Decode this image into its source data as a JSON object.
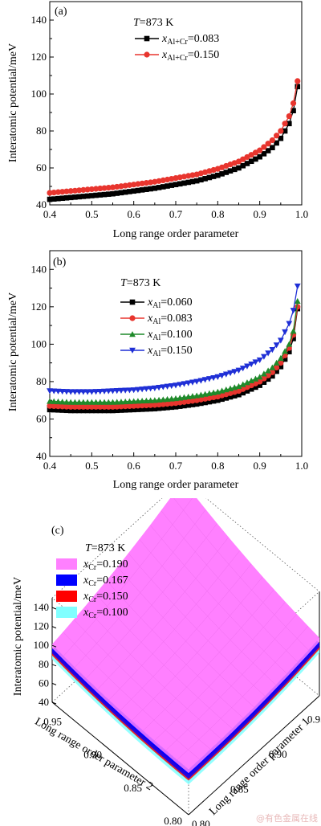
{
  "chart_data": [
    {
      "type": "line",
      "panel_label": "(a)",
      "annotation": "T=873 K",
      "xlabel": "Long range order parameter",
      "ylabel": "Interatomic potential/meV",
      "xlim": [
        0.4,
        1.0
      ],
      "ylim": [
        40,
        150
      ],
      "xticks": [
        "0.4",
        "0.5",
        "0.6",
        "0.7",
        "0.8",
        "0.9",
        "1.0"
      ],
      "yticks": [
        "40",
        "60",
        "80",
        "100",
        "120",
        "140"
      ],
      "series": [
        {
          "name": "x_Al+Cr=0.083",
          "marker": "square",
          "color": "#000000",
          "x": [
            0.4,
            0.45,
            0.5,
            0.55,
            0.6,
            0.65,
            0.7,
            0.75,
            0.8,
            0.85,
            0.9,
            0.93,
            0.95,
            0.97,
            0.98,
            0.99
          ],
          "y": [
            43,
            44,
            45,
            46,
            47.5,
            49,
            51,
            53,
            56,
            60,
            66,
            71,
            76,
            84,
            91,
            104
          ]
        },
        {
          "name": "x_Al+Cr=0.150",
          "marker": "circle",
          "color": "#e8352e",
          "x": [
            0.4,
            0.45,
            0.5,
            0.55,
            0.6,
            0.65,
            0.7,
            0.75,
            0.8,
            0.85,
            0.9,
            0.93,
            0.95,
            0.97,
            0.98,
            0.99
          ],
          "y": [
            46.5,
            47.5,
            48.5,
            49.5,
            51,
            52.5,
            54.5,
            56.5,
            59.5,
            63.5,
            69.5,
            75,
            80,
            88,
            95,
            107
          ]
        }
      ]
    },
    {
      "type": "line",
      "panel_label": "(b)",
      "annotation": "T=873 K",
      "xlabel": "Long range order parameter",
      "ylabel": "Interatomic potential/meV",
      "xlim": [
        0.4,
        1.0
      ],
      "ylim": [
        40,
        150
      ],
      "xticks": [
        "0.4",
        "0.5",
        "0.6",
        "0.7",
        "0.8",
        "0.9",
        "1.0"
      ],
      "yticks": [
        "40",
        "60",
        "80",
        "100",
        "120",
        "140"
      ],
      "series": [
        {
          "name": "x_Al=0.060",
          "marker": "square",
          "color": "#000000",
          "x": [
            0.4,
            0.45,
            0.5,
            0.55,
            0.6,
            0.65,
            0.7,
            0.75,
            0.8,
            0.85,
            0.9,
            0.93,
            0.95,
            0.97,
            0.98,
            0.99
          ],
          "y": [
            65,
            64.5,
            64.5,
            64.5,
            65,
            65.5,
            66.5,
            68,
            70,
            73,
            78,
            83,
            88,
            96,
            103,
            119
          ]
        },
        {
          "name": "x_Al=0.083",
          "marker": "circle",
          "color": "#e8352e",
          "x": [
            0.4,
            0.45,
            0.5,
            0.55,
            0.6,
            0.65,
            0.7,
            0.75,
            0.8,
            0.85,
            0.9,
            0.93,
            0.95,
            0.97,
            0.98,
            0.99
          ],
          "y": [
            67,
            66.5,
            66.5,
            66.5,
            67,
            67.5,
            68.5,
            70,
            72,
            75,
            80,
            85,
            90,
            98,
            105,
            120
          ]
        },
        {
          "name": "x_Al=0.100",
          "marker": "triangle-up",
          "color": "#1f8a2a",
          "x": [
            0.4,
            0.45,
            0.5,
            0.55,
            0.6,
            0.65,
            0.7,
            0.75,
            0.8,
            0.85,
            0.9,
            0.93,
            0.95,
            0.97,
            0.98,
            0.99
          ],
          "y": [
            69.5,
            69,
            69,
            69,
            69.5,
            70,
            71,
            72.5,
            74.5,
            77.5,
            82.5,
            87.5,
            92.5,
            100,
            107,
            123
          ]
        },
        {
          "name": "x_Al=0.150",
          "marker": "triangle-down",
          "color": "#1f2fd6",
          "x": [
            0.4,
            0.45,
            0.5,
            0.55,
            0.6,
            0.65,
            0.7,
            0.75,
            0.8,
            0.85,
            0.9,
            0.93,
            0.95,
            0.97,
            0.98,
            0.99
          ],
          "y": [
            75,
            74.5,
            74.5,
            75,
            75.5,
            76.5,
            78,
            80,
            82.5,
            86,
            91.5,
            97,
            102,
            111,
            118,
            131
          ]
        }
      ]
    },
    {
      "type": "surface",
      "panel_label": "(c)",
      "annotation": "T=873 K",
      "xlabel": "Long range order parameter 1",
      "ylabel": "Long range order parameter 2",
      "zlabel": "Interatomic potential/meV",
      "xlim": [
        0.8,
        0.97
      ],
      "ylim": [
        0.8,
        0.97
      ],
      "zlim": [
        40,
        150
      ],
      "xticks": [
        "0.80",
        "0.85",
        "0.90",
        "0.95"
      ],
      "yticks": [
        "0.80",
        "0.85",
        "0.90",
        "0.95"
      ],
      "zticks": [
        "40",
        "60",
        "80",
        "100",
        "120",
        "140"
      ],
      "series": [
        {
          "name": "x_Cr=0.190",
          "color": "#ff80ff",
          "corner_values": [
            148,
            88,
            148,
            92
          ]
        },
        {
          "name": "x_Cr=0.167",
          "color": "#0000ff",
          "corner_values": [
            144,
            82,
            144,
            84
          ]
        },
        {
          "name": "x_Cr=0.150",
          "color": "#ff0000",
          "corner_values": [
            141,
            80,
            141,
            80
          ]
        },
        {
          "name": "x_Cr=0.100",
          "color": "#80ffff",
          "corner_values": [
            137,
            76,
            137,
            76
          ]
        }
      ]
    }
  ],
  "legend": {
    "a": [
      {
        "var": "x",
        "sub": "Al+Cr",
        "value": "=0.083"
      },
      {
        "var": "x",
        "sub": "Al+Cr",
        "value": "=0.150"
      }
    ],
    "b": [
      {
        "var": "x",
        "sub": "Al",
        "value": "=0.060"
      },
      {
        "var": "x",
        "sub": "Al",
        "value": "=0.083"
      },
      {
        "var": "x",
        "sub": "Al",
        "value": "=0.100"
      },
      {
        "var": "x",
        "sub": "Al",
        "value": "=0.150"
      }
    ],
    "c": [
      {
        "var": "x",
        "sub": "Cr",
        "value": "=0.190"
      },
      {
        "var": "x",
        "sub": "Cr",
        "value": "=0.167"
      },
      {
        "var": "x",
        "sub": "Cr",
        "value": "=0.150"
      },
      {
        "var": "x",
        "sub": "Cr",
        "value": "=0.100"
      }
    ]
  },
  "temperature": {
    "var": "T",
    "value": "=873 K"
  },
  "watermark": "@有色金属在线"
}
